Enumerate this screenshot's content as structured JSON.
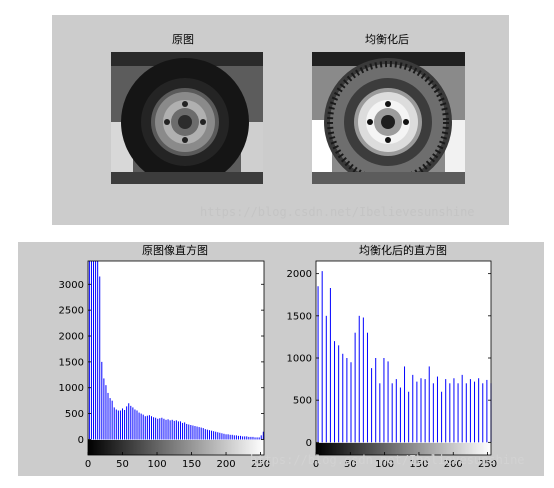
{
  "top_figure": {
    "left_title": "原图",
    "right_title": "均衡化后",
    "watermark": "https://blog.csdn.net/Ibelievesunshine"
  },
  "colors": {
    "panel": "#cccccc",
    "bar": "#0000ff",
    "axes_bg": "#ffffff"
  },
  "chart_data": [
    {
      "type": "bar",
      "title": "原图像直方图",
      "xlabel": "",
      "ylabel": "",
      "xlim": [
        0,
        255
      ],
      "ylim": [
        -300,
        3450
      ],
      "y_ticks": [
        0,
        500,
        1000,
        1500,
        2000,
        2500,
        3000
      ],
      "x_ticks": [
        0,
        50,
        100,
        150,
        200,
        250
      ],
      "colorbar": "gray",
      "series": [
        {
          "x": [
            2,
            5,
            8,
            11,
            14,
            17,
            20,
            23,
            26,
            29,
            32,
            35,
            38,
            41,
            44,
            47,
            50,
            53,
            56,
            59,
            62,
            65,
            68,
            71,
            74,
            77,
            80,
            83,
            86,
            89,
            92,
            95,
            98,
            101,
            104,
            107,
            110,
            113,
            116,
            119,
            122,
            125,
            128,
            131,
            134,
            137,
            140,
            143,
            146,
            149,
            152,
            155,
            158,
            161,
            164,
            167,
            170,
            173,
            176,
            179,
            182,
            185,
            188,
            191,
            194,
            197,
            200,
            203,
            206,
            209,
            212,
            215,
            218,
            221,
            224,
            227,
            230,
            233,
            236,
            239,
            242,
            245,
            248,
            251,
            254
          ],
          "values": [
            3450,
            3450,
            3450,
            3450,
            3450,
            3150,
            1500,
            1180,
            1050,
            900,
            800,
            750,
            620,
            580,
            560,
            560,
            600,
            570,
            640,
            700,
            650,
            620,
            580,
            560,
            520,
            500,
            480,
            450,
            460,
            470,
            450,
            430,
            420,
            400,
            410,
            420,
            400,
            380,
            390,
            370,
            380,
            360,
            370,
            350,
            350,
            320,
            330,
            300,
            290,
            280,
            270,
            260,
            250,
            240,
            230,
            220,
            200,
            190,
            180,
            170,
            160,
            150,
            140,
            130,
            120,
            110,
            100,
            100,
            90,
            90,
            80,
            80,
            70,
            70,
            60,
            60,
            60,
            50,
            50,
            50,
            40,
            40,
            40,
            80,
            150
          ]
        }
      ]
    },
    {
      "type": "bar",
      "title": "均衡化后的直方图",
      "xlabel": "",
      "ylabel": "",
      "xlim": [
        0,
        255
      ],
      "ylim": [
        -150,
        2150
      ],
      "y_ticks": [
        0,
        500,
        1000,
        1500,
        2000
      ],
      "x_ticks": [
        0,
        50,
        100,
        150,
        200,
        250
      ],
      "colorbar": "gray",
      "series": [
        {
          "x": [
            3,
            9,
            15,
            21,
            27,
            33,
            39,
            45,
            51,
            57,
            63,
            69,
            75,
            81,
            87,
            93,
            99,
            105,
            111,
            117,
            123,
            129,
            135,
            141,
            147,
            153,
            159,
            165,
            171,
            177,
            183,
            189,
            195,
            201,
            207,
            213,
            219,
            225,
            231,
            237,
            243,
            249,
            255
          ],
          "values": [
            1850,
            2030,
            1500,
            1830,
            1200,
            1150,
            1050,
            1000,
            950,
            1300,
            1500,
            1480,
            1300,
            880,
            1000,
            700,
            1000,
            960,
            700,
            750,
            650,
            900,
            600,
            800,
            720,
            760,
            750,
            900,
            700,
            780,
            600,
            750,
            700,
            760,
            700,
            800,
            700,
            750,
            720,
            760,
            700,
            740,
            700
          ]
        }
      ]
    }
  ]
}
